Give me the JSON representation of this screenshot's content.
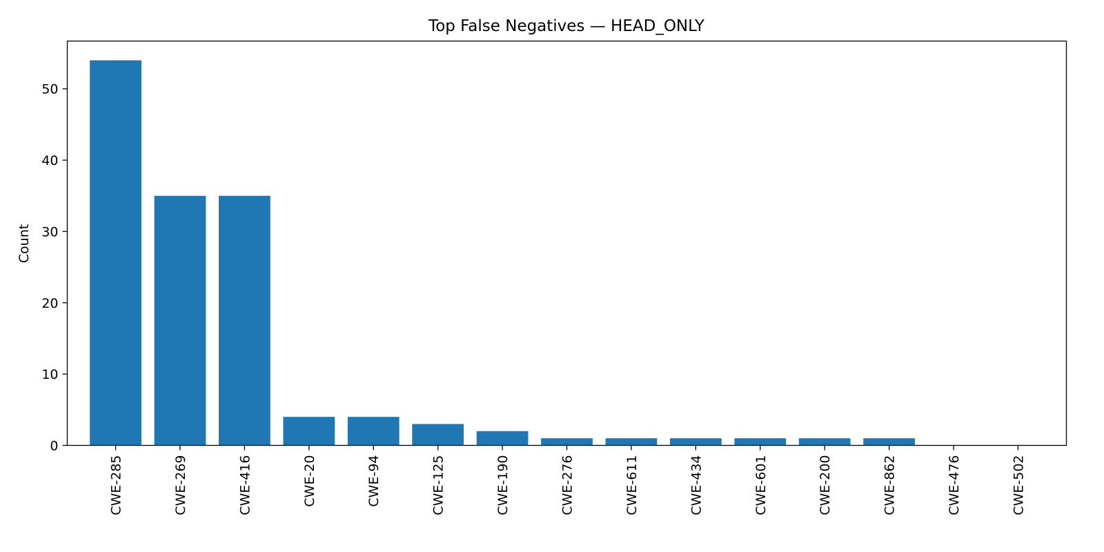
{
  "chart_data": {
    "type": "bar",
    "title": "Top False Negatives — HEAD_ONLY",
    "xlabel": "",
    "ylabel": "Count",
    "categories": [
      "CWE-285",
      "CWE-269",
      "CWE-416",
      "CWE-20",
      "CWE-94",
      "CWE-125",
      "CWE-190",
      "CWE-276",
      "CWE-611",
      "CWE-434",
      "CWE-601",
      "CWE-200",
      "CWE-862",
      "CWE-476",
      "CWE-502"
    ],
    "values": [
      54,
      35,
      35,
      4,
      4,
      3,
      2,
      1,
      1,
      1,
      1,
      1,
      1,
      0,
      0
    ],
    "ylim": [
      0,
      56.7
    ],
    "yticks": [
      0,
      10,
      20,
      30,
      40,
      50
    ],
    "bar_color": "#1f77b4",
    "grid": false,
    "legend": "none"
  }
}
